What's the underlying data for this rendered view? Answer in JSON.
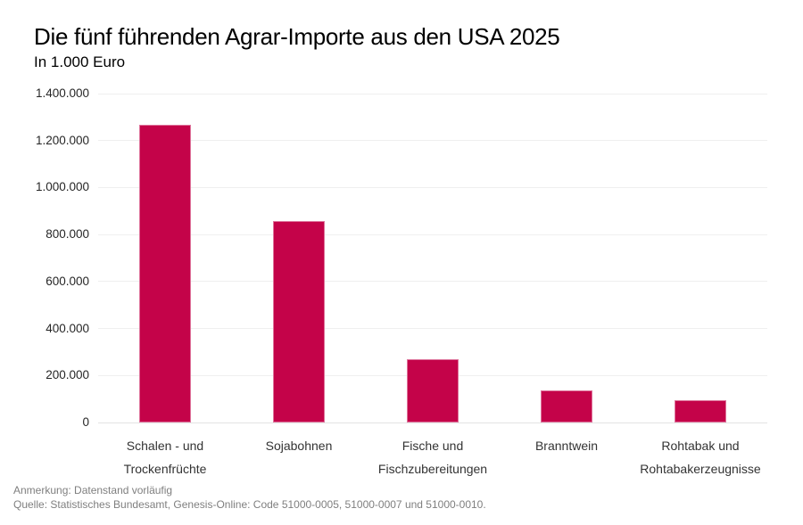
{
  "header": {
    "title": "Die fünf führenden Agrar-Importe aus den USA 2025",
    "subtitle": "In 1.000 Euro"
  },
  "chart_data": {
    "type": "bar",
    "title": "Die fünf führenden Agrar-Importe aus den USA 2025",
    "subtitle": "In 1.000 Euro",
    "unit": "1.000 Euro",
    "categories": [
      "Schalen - und Trockenfrüchte",
      "Sojabohnen",
      "Fische und Fischzubereitungen",
      "Branntwein",
      "Rohtabak und Rohtabakerzeugnisse"
    ],
    "category_lines": [
      [
        "Schalen - und",
        "Trockenfrüchte"
      ],
      [
        "Sojabohnen"
      ],
      [
        "Fische und",
        "Fischzubereitungen"
      ],
      [
        "Branntwein"
      ],
      [
        "Rohtabak und",
        "Rohtabakerzeugnisse"
      ]
    ],
    "values": [
      1266000,
      856000,
      271000,
      138000,
      94000
    ],
    "ylim": [
      0,
      1400000
    ],
    "ytick_step": 200000,
    "ytick_labels": [
      "0",
      "200.000",
      "400.000",
      "600.000",
      "800.000",
      "1.000.000",
      "1.200.000",
      "1.400.000"
    ],
    "grid": true,
    "legend": false,
    "bar_color": "#C40349",
    "bar_border_color": "rgba(255,255,255,0.45)",
    "grid_color": "#efefef",
    "axis_line_color": "#e3e3e3"
  },
  "footer": {
    "note": "Anmerkung: Datenstand vorläufig",
    "source": "Quelle: Statistisches Bundesamt, Genesis-Online: Code 51000-0005, 51000-0007 und 51000-0010."
  }
}
